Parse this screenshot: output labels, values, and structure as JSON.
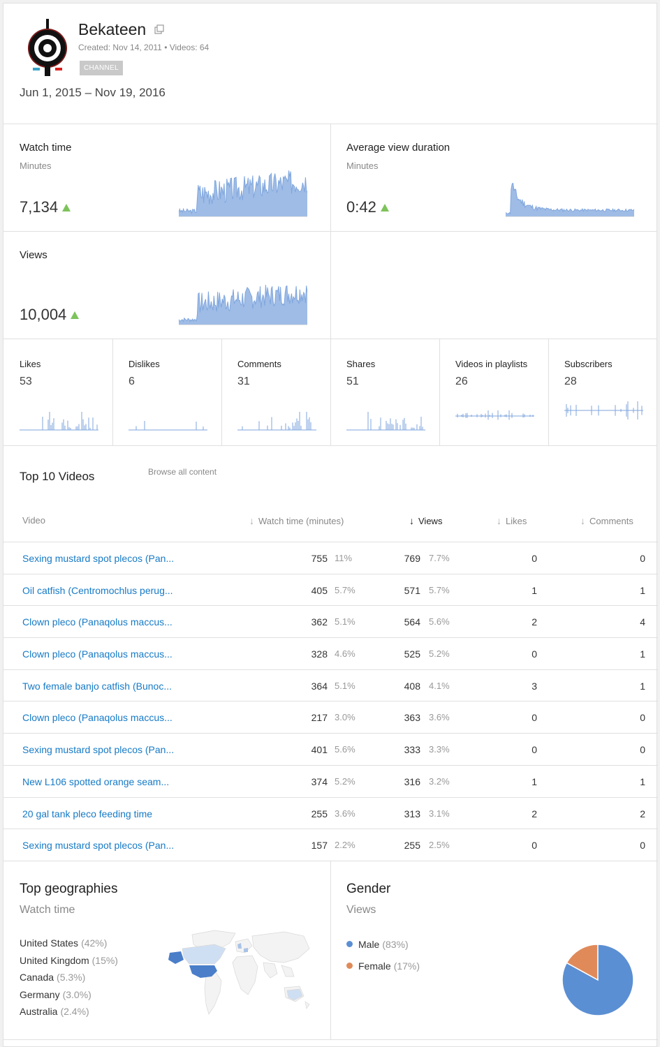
{
  "channel": {
    "name": "Bekateen",
    "meta": "Created: Nov 14, 2011  •  Videos: 64",
    "badge": "CHANNEL"
  },
  "date_range": "Jun 1, 2015 – Nov 19, 2016",
  "metrics": {
    "watch_time": {
      "title": "Watch time",
      "sub": "Minutes",
      "value": "7,134"
    },
    "avg_view_duration": {
      "title": "Average view duration",
      "sub": "Minutes",
      "value": "0:42"
    },
    "views": {
      "title": "Views",
      "value": "10,004"
    }
  },
  "small_metrics": [
    {
      "title": "Likes",
      "value": "53"
    },
    {
      "title": "Dislikes",
      "value": "6"
    },
    {
      "title": "Comments",
      "value": "31"
    },
    {
      "title": "Shares",
      "value": "51"
    },
    {
      "title": "Videos in playlists",
      "value": "26"
    },
    {
      "title": "Subscribers",
      "value": "28"
    }
  ],
  "top_videos": {
    "title": "Top 10 Videos",
    "browse_label": "Browse all content",
    "columns": {
      "video": "Video",
      "watch_time": "Watch time (minutes)",
      "views": "Views",
      "likes": "Likes",
      "comments": "Comments"
    },
    "rows": [
      {
        "title": "Sexing mustard spot plecos (Pan...",
        "watch": "755",
        "watch_pct": "11%",
        "views": "769",
        "views_pct": "7.7%",
        "likes": "0",
        "comments": "0"
      },
      {
        "title": "Oil catfish (Centromochlus perug...",
        "watch": "405",
        "watch_pct": "5.7%",
        "views": "571",
        "views_pct": "5.7%",
        "likes": "1",
        "comments": "1"
      },
      {
        "title": "Clown pleco (Panaqolus maccus...",
        "watch": "362",
        "watch_pct": "5.1%",
        "views": "564",
        "views_pct": "5.6%",
        "likes": "2",
        "comments": "4"
      },
      {
        "title": "Clown pleco (Panaqolus maccus...",
        "watch": "328",
        "watch_pct": "4.6%",
        "views": "525",
        "views_pct": "5.2%",
        "likes": "0",
        "comments": "1"
      },
      {
        "title": "Two female banjo catfish (Bunoc...",
        "watch": "364",
        "watch_pct": "5.1%",
        "views": "408",
        "views_pct": "4.1%",
        "likes": "3",
        "comments": "1"
      },
      {
        "title": "Clown pleco (Panaqolus maccus...",
        "watch": "217",
        "watch_pct": "3.0%",
        "views": "363",
        "views_pct": "3.6%",
        "likes": "0",
        "comments": "0"
      },
      {
        "title": "Sexing mustard spot plecos (Pan...",
        "watch": "401",
        "watch_pct": "5.6%",
        "views": "333",
        "views_pct": "3.3%",
        "likes": "0",
        "comments": "0"
      },
      {
        "title": "New L106 spotted orange seam...",
        "watch": "374",
        "watch_pct": "5.2%",
        "views": "316",
        "views_pct": "3.2%",
        "likes": "1",
        "comments": "1"
      },
      {
        "title": "20 gal tank pleco feeding time",
        "watch": "255",
        "watch_pct": "3.6%",
        "views": "313",
        "views_pct": "3.1%",
        "likes": "2",
        "comments": "2"
      },
      {
        "title": "Sexing mustard spot plecos (Pan...",
        "watch": "157",
        "watch_pct": "2.2%",
        "views": "255",
        "views_pct": "2.5%",
        "likes": "0",
        "comments": "0"
      }
    ]
  },
  "geographies": {
    "title": "Top geographies",
    "sub": "Watch time",
    "items": [
      {
        "country": "United States",
        "pct": "(42%)"
      },
      {
        "country": "United Kingdom",
        "pct": "(15%)"
      },
      {
        "country": "Canada",
        "pct": "(5.3%)"
      },
      {
        "country": "Germany",
        "pct": "(3.0%)"
      },
      {
        "country": "Australia",
        "pct": "(2.4%)"
      }
    ]
  },
  "gender": {
    "title": "Gender",
    "sub": "Views",
    "items": [
      {
        "label": "Male",
        "pct": "(83%)",
        "value": 83,
        "color": "#5b8fd3"
      },
      {
        "label": "Female",
        "pct": "(17%)",
        "value": 17,
        "color": "#e08a5a"
      }
    ]
  },
  "colors": {
    "accent_link": "#167ac6",
    "spark": "#7fa6dd",
    "up_arrow": "#7dc35b"
  },
  "icons": [
    "external-link-icon",
    "sort-arrow-icon",
    "up-triangle-icon",
    "world-map"
  ]
}
